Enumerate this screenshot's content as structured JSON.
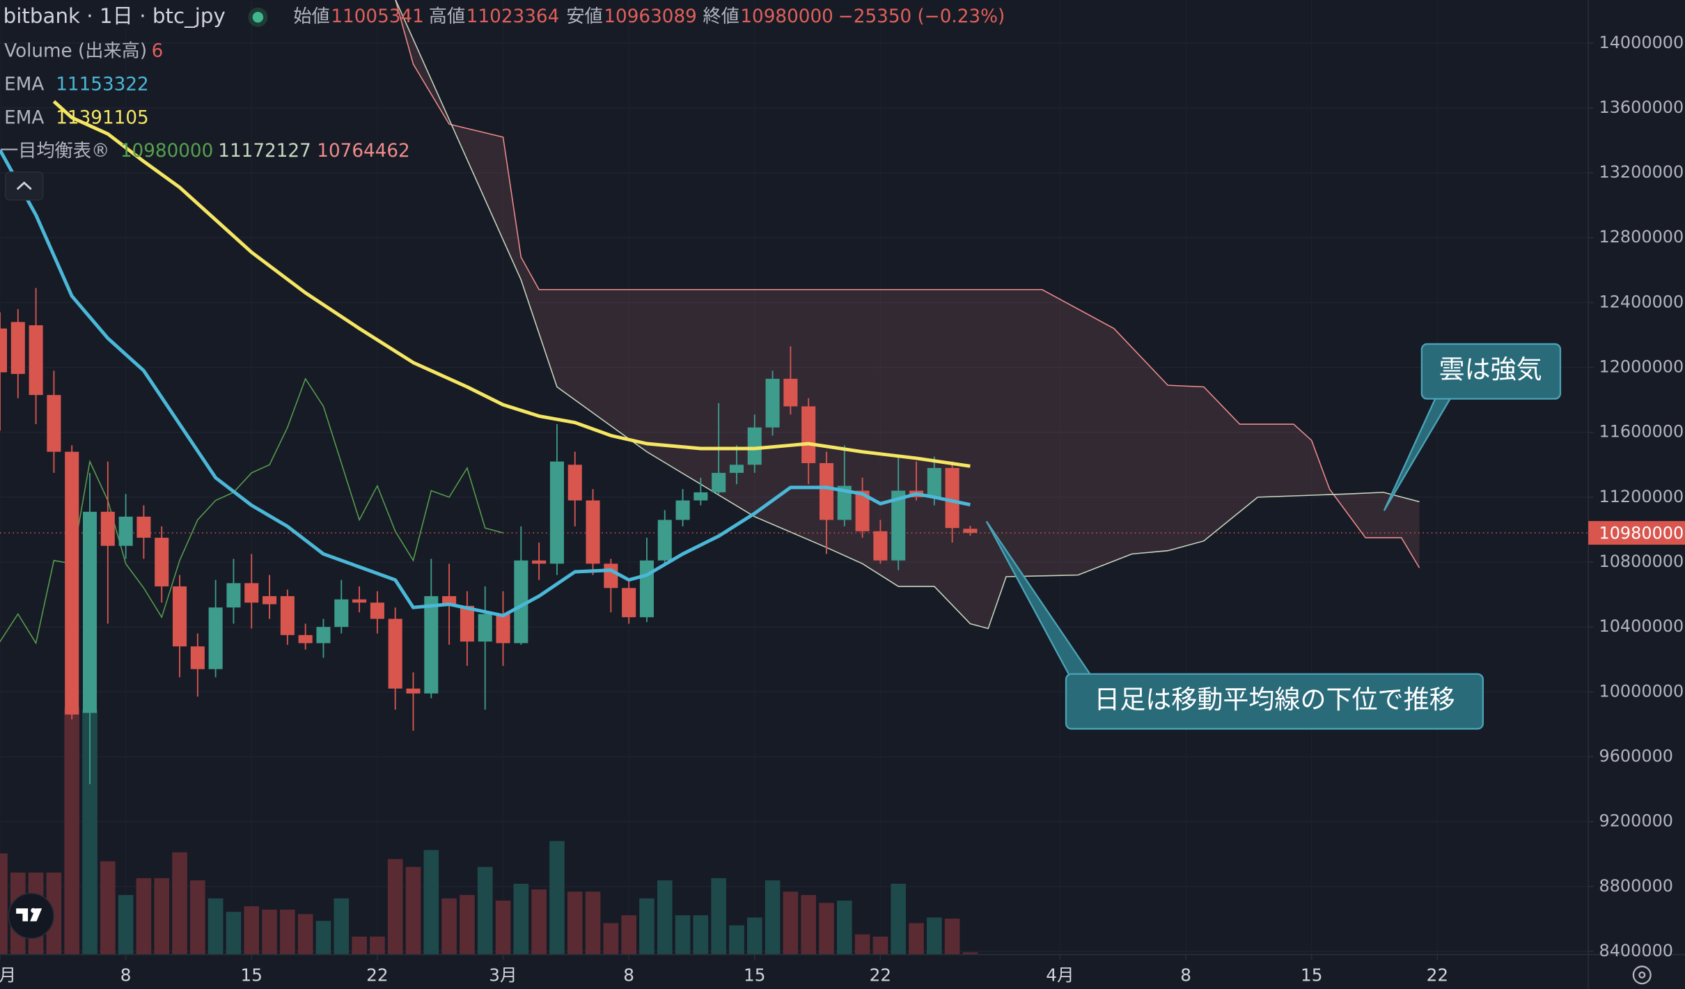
{
  "chart_data": {
    "type": "candlestick",
    "title": "bitbank · 1日 · btc_jpy",
    "ohlc_labels": [
      "始値",
      "高値",
      "安値",
      "終値"
    ],
    "change_label": "−25350 (−0.23%)",
    "up_color": "#3d9c8c",
    "down_color": "#d9564f",
    "x": [
      0,
      1,
      2,
      3,
      4,
      5,
      6,
      7,
      8,
      9,
      10,
      11,
      12,
      13,
      14,
      15,
      16,
      17,
      18,
      19,
      20,
      21,
      22,
      23,
      24,
      25,
      26,
      27,
      28,
      29,
      30,
      31,
      32,
      33,
      34,
      35,
      36,
      37,
      38,
      39,
      40,
      41,
      42,
      43,
      44,
      45,
      46,
      47,
      48,
      49,
      50,
      51,
      52,
      53,
      54
    ],
    "open": [
      12240000,
      12280000,
      12260000,
      11830000,
      11480000,
      9870000,
      11110000,
      10900000,
      11080000,
      10950000,
      10650000,
      10280000,
      10140000,
      10520000,
      10670000,
      10590000,
      10590000,
      10350000,
      10300000,
      10400000,
      10570000,
      10550000,
      10450000,
      10020000,
      9990000,
      10590000,
      10530000,
      10310000,
      10480000,
      10300000,
      10810000,
      10790000,
      11400000,
      11180000,
      10790000,
      10640000,
      10460000,
      10810000,
      11060000,
      11180000,
      11230000,
      11350000,
      11400000,
      11630000,
      11930000,
      11760000,
      11410000,
      11060000,
      11240000,
      10990000,
      10810000,
      11240000,
      11200000,
      11380000,
      11005341
    ],
    "high": [
      12340000,
      12360000,
      12490000,
      11980000,
      11520000,
      11350000,
      11420000,
      11220000,
      11150000,
      11020000,
      10720000,
      10360000,
      10690000,
      10820000,
      10850000,
      10720000,
      10630000,
      10420000,
      10450000,
      10690000,
      10650000,
      10620000,
      10520000,
      10120000,
      10820000,
      10790000,
      10620000,
      10650000,
      10620000,
      11020000,
      10920000,
      11650000,
      11480000,
      11250000,
      10820000,
      10690000,
      10950000,
      11120000,
      11250000,
      11320000,
      11780000,
      11520000,
      11710000,
      11980000,
      12130000,
      11810000,
      11480000,
      11520000,
      11320000,
      11060000,
      11450000,
      11420000,
      11450000,
      11420000,
      11023364
    ],
    "low": [
      11610000,
      11810000,
      11650000,
      11350000,
      9830000,
      9430000,
      10420000,
      10820000,
      10820000,
      10550000,
      10090000,
      9970000,
      10090000,
      10420000,
      10390000,
      10450000,
      10290000,
      10260000,
      10210000,
      10360000,
      10490000,
      10360000,
      9890000,
      9760000,
      9960000,
      10290000,
      10160000,
      9890000,
      10160000,
      10290000,
      10690000,
      10720000,
      11020000,
      10720000,
      10490000,
      10420000,
      10430000,
      10790000,
      11020000,
      11150000,
      11220000,
      11280000,
      11350000,
      11580000,
      11710000,
      11280000,
      10850000,
      11020000,
      10950000,
      10790000,
      10750000,
      11180000,
      11150000,
      10920000,
      10963089
    ],
    "close": [
      11970000,
      11960000,
      11830000,
      11480000,
      9860000,
      11110000,
      10900000,
      11080000,
      10950000,
      10650000,
      10280000,
      10140000,
      10520000,
      10670000,
      10550000,
      10540000,
      10350000,
      10300000,
      10400000,
      10570000,
      10550000,
      10450000,
      10020000,
      9990000,
      10590000,
      10530000,
      10310000,
      10480000,
      10300000,
      10810000,
      10790000,
      11420000,
      11180000,
      10790000,
      10640000,
      10460000,
      10810000,
      11060000,
      11180000,
      11230000,
      11350000,
      11400000,
      11630000,
      11930000,
      11760000,
      11410000,
      11060000,
      11270000,
      10990000,
      10810000,
      11240000,
      11200000,
      11380000,
      11010000,
      10980000
    ],
    "volume": {
      "name": "Volume (出来高)",
      "up_color": "#1e4a4c",
      "down_color": "#5a2b32",
      "values": [
        270,
        219,
        219,
        219,
        660,
        654,
        249,
        159,
        204,
        204,
        273,
        198,
        150,
        114,
        129,
        120,
        120,
        108,
        90,
        150,
        48,
        48,
        255,
        234,
        279,
        150,
        159,
        234,
        144,
        189,
        174,
        303,
        168,
        168,
        84,
        105,
        150,
        198,
        105,
        105,
        204,
        78,
        99,
        198,
        168,
        159,
        138,
        144,
        54,
        48,
        189,
        84,
        99,
        96,
        6
      ]
    },
    "series": [
      {
        "name": "EMA",
        "color": "#4bb8d8",
        "x": [
          0,
          2,
          4,
          6,
          8,
          10,
          12,
          14,
          16,
          18,
          20,
          22,
          23,
          25,
          28,
          30,
          32,
          34,
          35,
          36,
          38,
          40,
          42,
          44,
          46,
          48,
          49,
          51,
          52,
          54
        ],
        "values": [
          13340000,
          12940000,
          12440000,
          12180000,
          11980000,
          11650000,
          11320000,
          11150000,
          11020000,
          10850000,
          10770000,
          10690000,
          10520000,
          10540000,
          10470000,
          10590000,
          10740000,
          10750000,
          10690000,
          10720000,
          10850000,
          10960000,
          11100000,
          11260000,
          11260000,
          11220000,
          11160000,
          11220000,
          11200000,
          11153322
        ]
      },
      {
        "name": "EMA",
        "color": "#f5e663",
        "x": [
          3,
          4,
          6,
          8,
          10,
          12,
          14,
          17,
          20,
          23,
          26,
          28,
          30,
          32,
          34,
          36,
          39,
          42,
          45,
          48,
          51,
          54
        ],
        "values": [
          13640000,
          13540000,
          13440000,
          13270000,
          13110000,
          12910000,
          12710000,
          12460000,
          12240000,
          12030000,
          11880000,
          11770000,
          11700000,
          11660000,
          11580000,
          11530000,
          11500000,
          11500000,
          11530000,
          11480000,
          11440000,
          11391105
        ]
      }
    ],
    "ichimoku": {
      "name": "一目均衡表®",
      "lagging_color": "#56a04e",
      "cloud_color": "#f08c8c",
      "span_a": {
        "color": "#c8d9c0",
        "x": [
          22,
          29,
          31,
          36,
          42,
          46,
          48,
          50,
          52,
          54,
          55,
          56,
          60,
          63,
          65,
          67,
          70,
          75,
          77,
          79
        ],
        "values": [
          14270000,
          12540000,
          11880000,
          11480000,
          11080000,
          10890000,
          10790000,
          10650000,
          10650000,
          10420000,
          10390000,
          10710000,
          10720000,
          10850000,
          10870000,
          10930000,
          11200000,
          11220000,
          11230000,
          11172127
        ]
      },
      "span_b": {
        "color": "#f08c8c",
        "x": [
          22,
          23,
          25,
          28,
          29,
          30,
          58,
          60,
          62,
          65,
          67,
          69,
          72,
          73,
          74,
          76,
          78,
          79
        ],
        "values": [
          14270000,
          13870000,
          13500000,
          13420000,
          12680000,
          12480000,
          12480000,
          12360000,
          12240000,
          11890000,
          11880000,
          11650000,
          11650000,
          11550000,
          11250000,
          10950000,
          10950000,
          10764462
        ]
      }
    },
    "xlim": [
      0,
      88.4
    ],
    "xticks": [
      {
        "value": 0,
        "label": "月"
      },
      {
        "value": 7,
        "label": "8"
      },
      {
        "value": 14,
        "label": "15"
      },
      {
        "value": 21,
        "label": "22"
      },
      {
        "value": 28,
        "label": "3月"
      },
      {
        "value": 35,
        "label": "8"
      },
      {
        "value": 42,
        "label": "15"
      },
      {
        "value": 49,
        "label": "22"
      },
      {
        "value": 59,
        "label": "4月"
      },
      {
        "value": 66,
        "label": "8"
      },
      {
        "value": 73,
        "label": "15"
      },
      {
        "value": 80,
        "label": "22"
      }
    ],
    "ylim": [
      8400000,
      14000000
    ],
    "yticks": [
      8400000,
      8800000,
      9200000,
      9600000,
      10000000,
      10400000,
      10800000,
      11200000,
      11600000,
      12000000,
      12400000,
      12800000,
      13200000,
      13600000,
      14000000
    ],
    "annotations": [
      {
        "text": "雲は強気"
      },
      {
        "text": "日足は移動平均線の下位で推移"
      }
    ]
  }
}
